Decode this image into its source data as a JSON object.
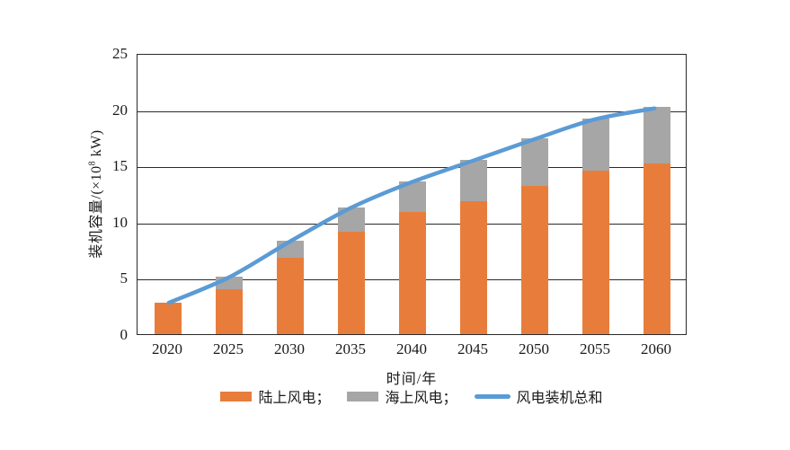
{
  "figure": {
    "background": "#ffffff",
    "text_color": "#1a1a1a",
    "frame_color": "#2a2a2a"
  },
  "chart_data": {
    "type": "bar",
    "stacked": true,
    "categories": [
      "2020",
      "2025",
      "2030",
      "2035",
      "2040",
      "2045",
      "2050",
      "2055",
      "2060"
    ],
    "series": [
      {
        "name": "陆上风电",
        "kind": "bar",
        "color": "#E87D3B",
        "values": [
          2.8,
          4.0,
          6.8,
          9.1,
          10.9,
          11.8,
          13.2,
          14.5,
          15.2
        ]
      },
      {
        "name": "海上风电",
        "kind": "bar",
        "color": "#A6A6A6",
        "values": [
          0,
          1.1,
          1.5,
          2.2,
          2.7,
          3.7,
          4.2,
          4.7,
          5.0
        ]
      },
      {
        "name": "风电装机总和",
        "kind": "line",
        "color": "#5B9BD5",
        "values": [
          2.8,
          5.1,
          8.3,
          11.3,
          13.6,
          15.5,
          17.4,
          19.2,
          20.2
        ]
      }
    ],
    "xlabel": "时间/年",
    "ylabel": "装机容量/(×10⁸ kW)",
    "ylabel_parts": {
      "prefix": "装机容量/(×10",
      "sup": "8",
      "suffix": " kW)"
    },
    "ylim": [
      0,
      25
    ],
    "yticks": [
      0,
      5,
      10,
      15,
      20,
      25
    ],
    "grid": true,
    "legend_position": "bottom"
  },
  "legend": {
    "items": [
      {
        "label": "陆上风电；",
        "swatch": "bar",
        "color": "#E87D3B"
      },
      {
        "label": "海上风电；",
        "swatch": "bar",
        "color": "#A6A6A6"
      },
      {
        "label": "风电装机总和",
        "swatch": "line",
        "color": "#5B9BD5"
      }
    ]
  }
}
